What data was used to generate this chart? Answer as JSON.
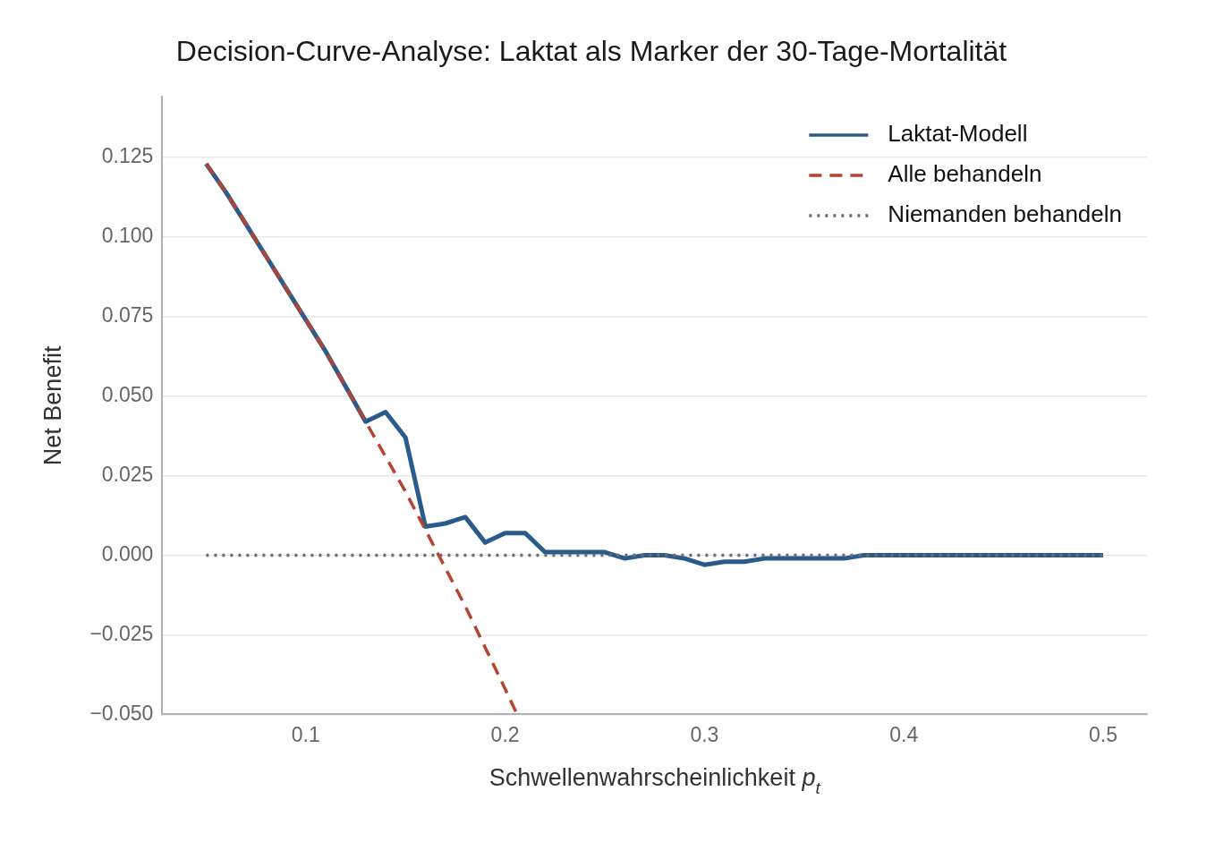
{
  "chart_data": {
    "type": "line",
    "title": "Decision-Curve-Analyse: Laktat als Marker der 30-Tage-Mortalität",
    "xlabel": "Schwellenwahrscheinlichkeit p$_{t}$",
    "ylabel": "Net Benefit",
    "xlim": [
      0.028,
      0.522
    ],
    "ylim": [
      -0.05,
      0.144
    ],
    "xticks": [
      0.1,
      0.2,
      0.3,
      0.4,
      0.5
    ],
    "yticks": [
      {
        "value": -0.05,
        "label": "−0.050"
      },
      {
        "value": -0.025,
        "label": "−0.025"
      },
      {
        "value": 0,
        "label": "0.000"
      },
      {
        "value": 0.025,
        "label": "0.025"
      },
      {
        "value": 0.05,
        "label": "0.050"
      },
      {
        "value": 0.075,
        "label": "0.075"
      },
      {
        "value": 0.1,
        "label": "0.100"
      },
      {
        "value": 0.125,
        "label": "0.125"
      }
    ],
    "grid": "y",
    "legend": "top right",
    "series": [
      {
        "name": "Laktat-Modell",
        "color": "#2a5b8a",
        "line_style": "solid",
        "x": [
          0.05,
          0.06,
          0.07,
          0.08,
          0.09,
          0.1,
          0.11,
          0.12,
          0.13,
          0.14,
          0.15,
          0.16,
          0.17,
          0.18,
          0.19,
          0.2,
          0.21,
          0.22,
          0.23,
          0.24,
          0.25,
          0.26,
          0.27,
          0.28,
          0.29,
          0.3,
          0.31,
          0.32,
          0.33,
          0.34,
          0.35,
          0.36,
          0.37,
          0.38,
          0.39,
          0.4,
          0.41,
          0.42,
          0.43,
          0.44,
          0.45,
          0.46,
          0.47,
          0.48,
          0.49,
          0.5
        ],
        "values": [
          0.123,
          0.114,
          0.104,
          0.094,
          0.084,
          0.074,
          0.064,
          0.053,
          0.042,
          0.045,
          0.037,
          0.009,
          0.01,
          0.012,
          0.004,
          0.007,
          0.007,
          0.001,
          0.001,
          0.001,
          0.001,
          -0.001,
          0.0,
          -0.0,
          -0.001,
          -0.003,
          -0.002,
          -0.002,
          -0.001,
          -0.001,
          -0.001,
          -0.001,
          -0.001,
          0.0,
          0.0,
          0.0,
          0.0,
          0.0,
          0.0,
          0.0,
          0.0,
          0.0,
          0.0,
          0.0,
          0.0,
          0.0
        ]
      },
      {
        "name": "Alle behandeln",
        "color": "#b5432f",
        "line_style": "dashed",
        "x": [
          0.05,
          0.06,
          0.07,
          0.08,
          0.09,
          0.1,
          0.11,
          0.12,
          0.13,
          0.14,
          0.15,
          0.16,
          0.17,
          0.18,
          0.19,
          0.2,
          0.206
        ],
        "values": [
          0.123,
          0.114,
          0.104,
          0.094,
          0.084,
          0.074,
          0.064,
          0.053,
          0.042,
          0.031,
          0.02,
          0.008,
          -0.004,
          -0.016,
          -0.029,
          -0.042,
          -0.05
        ]
      },
      {
        "name": "Niemanden behandeln",
        "color": "#6b6b70",
        "line_style": "dotted",
        "x": [
          0.05,
          0.5
        ],
        "values": [
          0,
          0
        ]
      }
    ]
  }
}
